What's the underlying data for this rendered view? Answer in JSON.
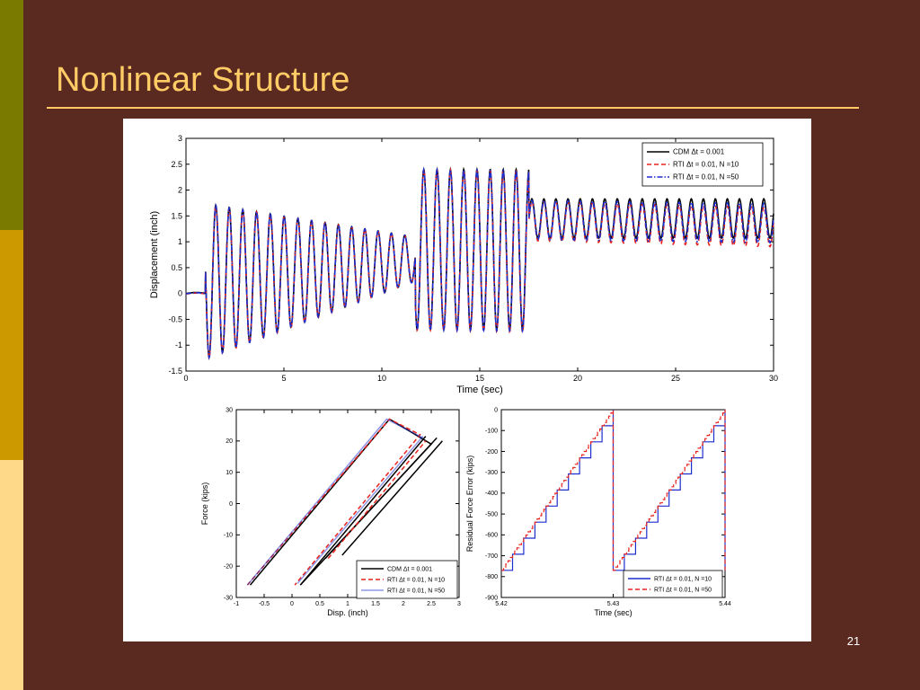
{
  "slide": {
    "title": "Nonlinear Structure",
    "page_number": "21"
  },
  "colors": {
    "background": "#5a2a20",
    "title": "#ffcc66",
    "stripe_top": "#7a7a00",
    "stripe_middle": "#cc9900",
    "stripe_bottom": "#ffd98a",
    "cdm": "#000000",
    "rti_n10": "#e8231c",
    "rti_n50": "#1e2fcf"
  },
  "chart_data": [
    {
      "type": "line",
      "xlabel": "Time (sec)",
      "ylabel": "Displacement (inch)",
      "xlim": [
        0,
        30
      ],
      "ylim": [
        -1.5,
        3
      ],
      "xticks": [
        "0",
        "5",
        "10",
        "15",
        "20",
        "25",
        "30"
      ],
      "yticks": [
        "-1.5",
        "-1",
        "-0.5",
        "0",
        "0.5",
        "1",
        "1.5",
        "2",
        "2.5",
        "3"
      ],
      "grid": false,
      "legend_position": "top-right",
      "legend": [
        "CDM Δt = 0.001",
        "RTI    Δt = 0.01, N =10",
        "RTI    Δt = 0.01, N =50"
      ],
      "series": [
        {
          "name": "CDM Δt = 0.001",
          "style": "solid",
          "keypoints": [
            [
              0,
              0
            ],
            [
              1,
              0.05
            ],
            [
              1.5,
              0.35
            ],
            [
              1.7,
              -0.35
            ],
            [
              2,
              1.9
            ],
            [
              2.2,
              -1.35
            ],
            [
              2.5,
              1.35
            ],
            [
              3,
              -0.5
            ],
            [
              3.5,
              1.2
            ],
            [
              3.9,
              -1.05
            ],
            [
              4.3,
              0.9
            ],
            [
              5,
              -0.8
            ],
            [
              5.3,
              1.4
            ],
            [
              6,
              -0.6
            ],
            [
              6.5,
              1.05
            ],
            [
              7.5,
              -0.3
            ],
            [
              8,
              1.05
            ],
            [
              9,
              0.5
            ],
            [
              9.5,
              0.7
            ],
            [
              10,
              0.85
            ],
            [
              11,
              0.2
            ],
            [
              11.6,
              -0.75
            ],
            [
              12,
              2.35
            ],
            [
              14.5,
              2.55
            ],
            [
              15.5,
              2.45
            ],
            [
              16.5,
              2.2
            ],
            [
              17.5,
              1.9
            ],
            [
              18.5,
              2.0
            ],
            [
              20,
              1.95
            ],
            [
              22,
              1.85
            ],
            [
              24,
              1.8
            ],
            [
              25,
              1.9
            ],
            [
              25.3,
              1.0
            ],
            [
              26,
              1.7
            ],
            [
              27,
              2.0
            ],
            [
              28,
              1.9
            ],
            [
              29,
              1.6
            ],
            [
              30,
              1.62
            ]
          ]
        },
        {
          "name": "RTI    Δt = 0.01, N =10",
          "style": "dashed",
          "keypoints": [
            [
              0,
              0
            ],
            [
              2,
              1.85
            ],
            [
              2.2,
              -1.3
            ],
            [
              5,
              -0.75
            ],
            [
              11.6,
              -0.75
            ],
            [
              12,
              2.3
            ],
            [
              14.5,
              2.45
            ],
            [
              16,
              2.2
            ],
            [
              18,
              1.7
            ],
            [
              20,
              1.6
            ],
            [
              22,
              1.55
            ],
            [
              25,
              1.6
            ],
            [
              25.3,
              0.9
            ],
            [
              28,
              1.55
            ],
            [
              30,
              1.5
            ]
          ]
        },
        {
          "name": "RTI    Δt = 0.01, N =50",
          "style": "dashdot",
          "keypoints": [
            [
              0,
              0
            ],
            [
              2,
              1.85
            ],
            [
              2.2,
              -1.32
            ],
            [
              5,
              -0.78
            ],
            [
              11.6,
              -0.75
            ],
            [
              12,
              2.32
            ],
            [
              14.5,
              2.5
            ],
            [
              16,
              2.25
            ],
            [
              18,
              1.8
            ],
            [
              20,
              1.75
            ],
            [
              22,
              1.68
            ],
            [
              25,
              1.7
            ],
            [
              25.3,
              0.95
            ],
            [
              28,
              1.65
            ],
            [
              30,
              1.55
            ]
          ]
        }
      ]
    },
    {
      "type": "line",
      "xlabel": "Disp. (inch)",
      "ylabel": "Force (kips)",
      "xlim": [
        -1,
        3
      ],
      "ylim": [
        -30,
        30
      ],
      "xticks": [
        "-1",
        "-0.5",
        "0",
        "0.5",
        "1",
        "1.5",
        "2",
        "2.5",
        "3"
      ],
      "yticks": [
        "-30",
        "-20",
        "-10",
        "0",
        "10",
        "20",
        "30"
      ],
      "grid": false,
      "legend_position": "bottom-right",
      "legend": [
        "CDM Δt = 0.001",
        "RTI    Δt = 0.01, N =10",
        "RTI    Δt = 0.01, N =50"
      ],
      "series": [
        {
          "name": "CDM Δt = 0.001",
          "style": "solid",
          "segments": [
            [
              [
                -0.75,
                -26
              ],
              [
                1.75,
                27
              ],
              [
                2.5,
                19
              ],
              [
                0.15,
                -26
              ]
            ],
            [
              [
                0.9,
                -16.5
              ],
              [
                2.7,
                20
              ]
            ],
            [
              [
                0.6,
                -17.5
              ],
              [
                2.6,
                21
              ]
            ],
            [
              [
                0.15,
                -26
              ],
              [
                2.4,
                21.5
              ]
            ]
          ]
        },
        {
          "name": "RTI    Δt = 0.01, N =10",
          "style": "dashed",
          "segments": [
            [
              [
                -0.8,
                -26
              ],
              [
                1.75,
                27
              ],
              [
                2.3,
                22
              ],
              [
                0.05,
                -26
              ]
            ],
            [
              [
                0.65,
                -17.5
              ],
              [
                2.4,
                20
              ]
            ]
          ]
        },
        {
          "name": "RTI    Δt = 0.01, N =50",
          "style": "solid-light",
          "segments": [
            [
              [
                -0.8,
                -26
              ],
              [
                1.7,
                27
              ],
              [
                2.35,
                21
              ]
            ],
            [
              [
                0.1,
                -25.5
              ],
              [
                2.35,
                21.5
              ]
            ]
          ]
        }
      ]
    },
    {
      "type": "line",
      "xlabel": "Time (sec)",
      "ylabel": "Residual Force Error (kips)",
      "xlim": [
        5.42,
        5.44
      ],
      "ylim": [
        -900,
        0
      ],
      "xticks": [
        "5.42",
        "5.43",
        "5.44"
      ],
      "yticks": [
        "-900",
        "-800",
        "-700",
        "-600",
        "-500",
        "-400",
        "-300",
        "-200",
        "-100",
        "0"
      ],
      "grid": false,
      "legend_position": "bottom-right",
      "legend": [
        "RTI    Δt = 0.01, N =10",
        "RTI    Δt = 0.01, N =50"
      ],
      "series": [
        {
          "name": "RTI    Δt = 0.01, N =10",
          "style": "staircase-solid",
          "period": [
            5.42,
            5.43
          ],
          "range": [
            -770,
            0
          ],
          "steps": 10
        },
        {
          "name": "RTI    Δt = 0.01, N =50",
          "style": "staircase-dashed",
          "period": [
            5.42,
            5.43
          ],
          "range": [
            -770,
            0
          ],
          "steps": 50
        }
      ]
    }
  ]
}
